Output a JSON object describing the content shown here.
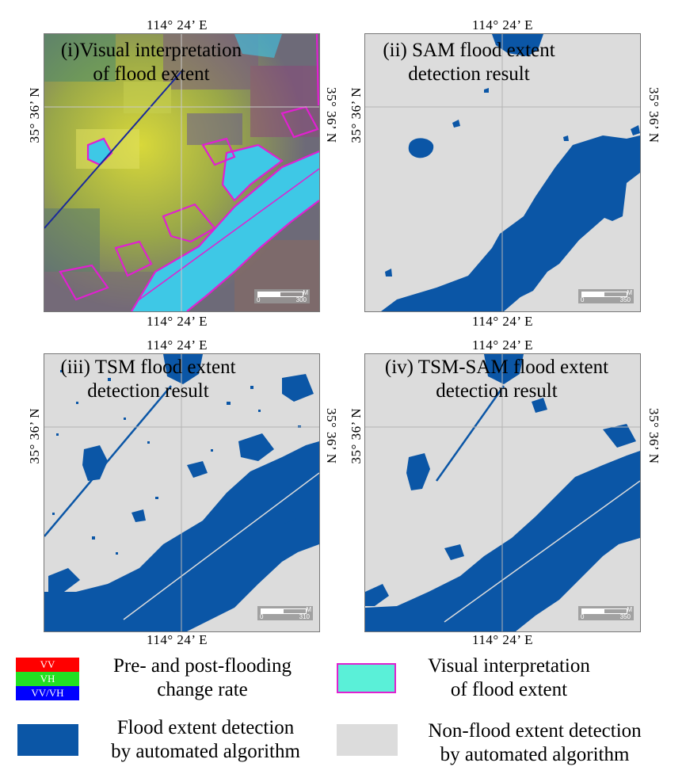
{
  "coords": {
    "lon": "114°  24’ E",
    "lat": "35°  36’ N"
  },
  "panels": [
    {
      "id": "i",
      "title_l1": "(i)Visual interpretation",
      "title_l2": "of flood extent",
      "scale_zero": "0",
      "scale_max": "300",
      "scale_unit": "M"
    },
    {
      "id": "ii",
      "title_l1": "(ii) SAM flood extent",
      "title_l2": "detection result",
      "scale_zero": "0",
      "scale_max": "350",
      "scale_unit": "M"
    },
    {
      "id": "iii",
      "title_l1": "(iii) TSM flood extent",
      "title_l2": "detection result",
      "scale_zero": "0",
      "scale_max": "310",
      "scale_unit": "M"
    },
    {
      "id": "iv",
      "title_l1": "(iv) TSM-SAM flood extent",
      "title_l2": "detection result",
      "scale_zero": "0",
      "scale_max": "350",
      "scale_unit": "M"
    }
  ],
  "legend": {
    "rgb_vv": "VV",
    "rgb_vh": "VH",
    "rgb_vvvh": "VV/VH",
    "change_rate_l1": "Pre- and post-flooding",
    "change_rate_l2": "change rate",
    "visual_l1": "Visual interpretation",
    "visual_l2": "of flood extent",
    "flood_l1": "Flood extent detection",
    "flood_l2": "by automated  algorithm",
    "nonflood_l1": "Non-flood extent detection",
    "nonflood_l2": "by automated  algorithm"
  },
  "colors": {
    "flood": "#0b56a6",
    "nonflood": "#dcdcdc",
    "water": "#3ec8e6",
    "visual_outline": "#e020d0",
    "legend_cyan": "#5af0d8",
    "red": "#ff0000",
    "green": "#22e022",
    "blue": "#0000ff"
  }
}
